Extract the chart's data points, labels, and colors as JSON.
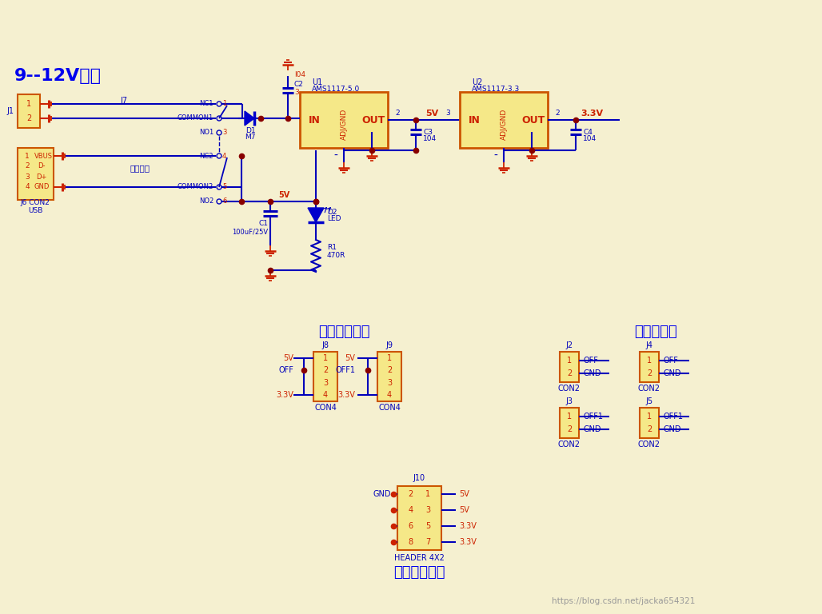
{
  "bg_color": "#f5f0d0",
  "line_color": "#0000bb",
  "red_color": "#cc2200",
  "component_fill": "#f5e888",
  "component_border": "#cc5500",
  "title_color": "#0000ee",
  "node_color": "#880000",
  "title": "9--12V直流",
  "watermark": "https://blog.csdn.net/jacka654321",
  "section1_title": "输出电压选择",
  "section2_title": "面包板电源",
  "section3_title": "外接电源引出",
  "zisuo": "自锁开关",
  "J1_label": "J1",
  "J6_label": "J6 CON2",
  "USB_label": "USB",
  "J7_label": "J7"
}
